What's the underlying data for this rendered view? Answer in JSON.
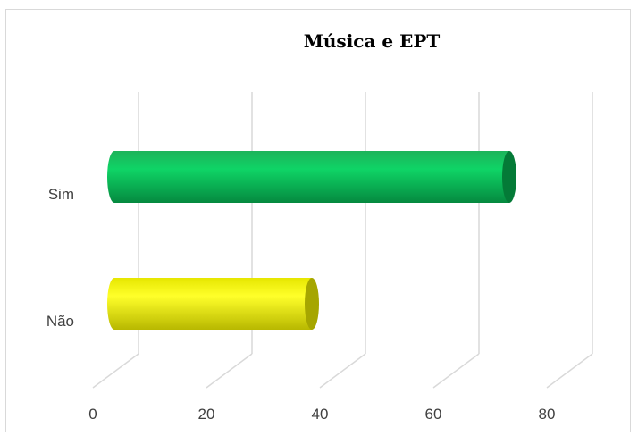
{
  "chart_data": {
    "type": "bar",
    "orientation": "horizontal",
    "style": "3d-cylinder",
    "title": "Música e EPT",
    "categories": [
      "Sim",
      "Não"
    ],
    "values": [
      70,
      35
    ],
    "colors": [
      "#0fbf55",
      "#f5f50a"
    ],
    "xlim": [
      0,
      80
    ],
    "xticks": [
      0,
      20,
      40,
      60,
      80
    ],
    "grid": true,
    "legend": "none"
  }
}
